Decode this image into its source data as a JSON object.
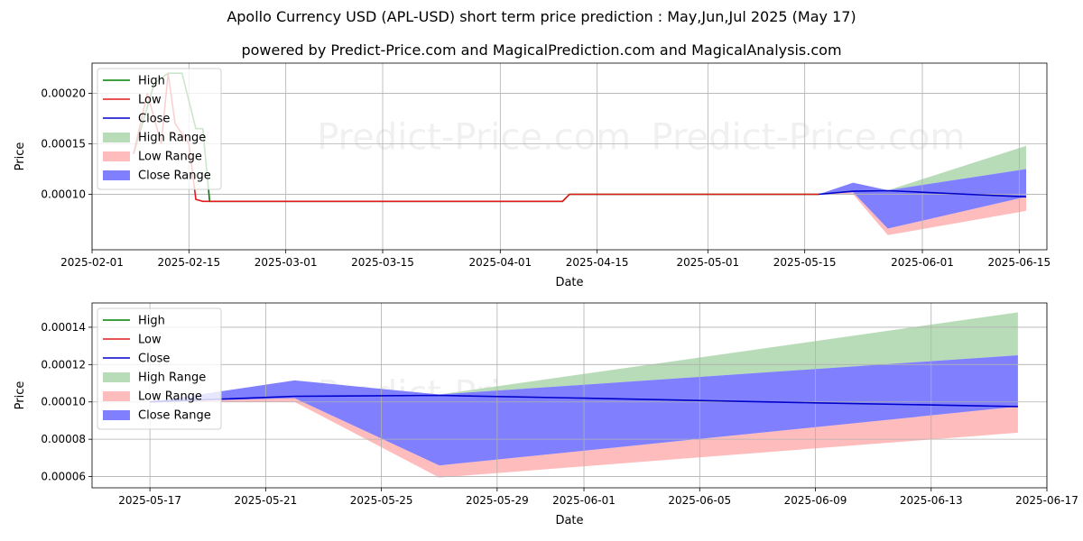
{
  "title": "Apollo Currency USD (APL-USD) short term price prediction : May,Jun,Jul 2025 (May 17)",
  "subtitle": "powered by Predict-Price.com and MagicalPrediction.com and MagicalAnalysis.com",
  "watermark": "Predict-Price.com",
  "colors": {
    "high": "#008000",
    "low": "#e31a1c",
    "close": "#0000cc",
    "high_range": "#b9dcb8",
    "low_range": "#ffbcbc",
    "close_range": "#8080ff",
    "grid": "#b0b0b0",
    "axis": "#000000"
  },
  "chart_data": [
    {
      "type": "line",
      "xlabel": "Date",
      "ylabel": "Price",
      "xlim": [
        "2025-02-01",
        "2025-06-19"
      ],
      "ylim": [
        4.5e-05,
        0.00023
      ],
      "x_ticks": [
        "2025-02-01",
        "2025-02-15",
        "2025-03-01",
        "2025-03-15",
        "2025-04-01",
        "2025-04-15",
        "2025-05-01",
        "2025-05-15",
        "2025-06-01",
        "2025-06-15"
      ],
      "y_ticks": [
        "0.00010",
        "0.00015",
        "0.00020"
      ],
      "y_tick_values": [
        0.0001,
        0.00015,
        0.0002
      ],
      "legend": {
        "position": "top-left",
        "entries": [
          "High",
          "Low",
          "Close",
          "High Range",
          "Low Range",
          "Close Range"
        ]
      },
      "series": [
        {
          "name": "High",
          "kind": "line",
          "color": "high",
          "x": [
            "2025-02-07",
            "2025-02-10",
            "2025-02-12",
            "2025-02-14",
            "2025-02-16",
            "2025-02-17",
            "2025-02-18",
            "2025-04-10",
            "2025-04-11",
            "2025-05-17"
          ],
          "y": [
            0.00014,
            0.00021,
            0.00022,
            0.00022,
            0.000165,
            0.000165,
            9.3e-05,
            9.3e-05,
            0.0001,
            0.0001
          ]
        },
        {
          "name": "Low",
          "kind": "line",
          "color": "low",
          "x": [
            "2025-02-07",
            "2025-02-09",
            "2025-02-11",
            "2025-02-12",
            "2025-02-13",
            "2025-02-15",
            "2025-02-16",
            "2025-02-17",
            "2025-04-10",
            "2025-04-11",
            "2025-05-17"
          ],
          "y": [
            0.00014,
            0.0002,
            0.00015,
            0.00022,
            0.00017,
            0.00015,
            9.5e-05,
            9.3e-05,
            9.3e-05,
            0.0001,
            0.0001
          ]
        },
        {
          "name": "Close",
          "kind": "line",
          "color": "close",
          "x": [
            "2025-05-17",
            "2025-05-22",
            "2025-05-27",
            "2025-06-01",
            "2025-06-09",
            "2025-06-16"
          ],
          "y": [
            0.0001,
            0.000103,
            0.0001035,
            0.000102,
            9.95e-05,
            9.75e-05
          ]
        },
        {
          "name": "High Range",
          "kind": "band",
          "color": "high_range",
          "x": [
            "2025-05-17",
            "2025-05-22",
            "2025-05-27",
            "2025-06-16"
          ],
          "upper": [
            0.0001,
            0.0001,
            0.000104,
            0.000148
          ],
          "lower": [
            0.0001,
            0.0001,
            0.000104,
            0.000125
          ]
        },
        {
          "name": "Low Range",
          "kind": "band",
          "color": "low_range",
          "x": [
            "2025-05-17",
            "2025-05-22",
            "2025-05-27",
            "2025-06-16"
          ],
          "upper": [
            0.0001,
            0.000102,
            6.6e-05,
            9.75e-05
          ],
          "lower": [
            0.0001,
            0.0001,
            5.95e-05,
            8.35e-05
          ]
        },
        {
          "name": "Close Range",
          "kind": "band",
          "color": "close_range",
          "x": [
            "2025-05-17",
            "2025-05-22",
            "2025-05-27",
            "2025-06-16"
          ],
          "upper": [
            0.0001,
            0.0001115,
            0.000104,
            0.000125
          ],
          "lower": [
            0.0001,
            0.000102,
            6.6e-05,
            9.75e-05
          ]
        }
      ]
    },
    {
      "type": "line",
      "xlabel": "Date",
      "ylabel": "Price",
      "xlim": [
        "2025-05-15",
        "2025-06-17"
      ],
      "ylim": [
        5.4e-05,
        0.000153
      ],
      "x_ticks": [
        "2025-05-17",
        "2025-05-21",
        "2025-05-25",
        "2025-05-29",
        "2025-06-01",
        "2025-06-05",
        "2025-06-09",
        "2025-06-13",
        "2025-06-17"
      ],
      "y_ticks": [
        "0.00006",
        "0.00008",
        "0.00010",
        "0.00012",
        "0.00014"
      ],
      "y_tick_values": [
        6e-05,
        8e-05,
        0.0001,
        0.00012,
        0.00014
      ],
      "legend": {
        "position": "top-left",
        "entries": [
          "High",
          "Low",
          "Close",
          "High Range",
          "Low Range",
          "Close Range"
        ]
      },
      "series": [
        {
          "name": "Close",
          "kind": "line",
          "color": "close",
          "x": [
            "2025-05-17",
            "2025-05-22",
            "2025-05-27",
            "2025-06-01",
            "2025-06-09",
            "2025-06-16"
          ],
          "y": [
            0.0001,
            0.000103,
            0.0001035,
            0.000102,
            9.95e-05,
            9.75e-05
          ]
        },
        {
          "name": "High Range",
          "kind": "band",
          "color": "high_range",
          "x": [
            "2025-05-17",
            "2025-05-22",
            "2025-05-27",
            "2025-06-16"
          ],
          "upper": [
            0.0001,
            0.0001,
            0.000104,
            0.000148
          ],
          "lower": [
            0.0001,
            0.0001,
            0.000104,
            0.000125
          ]
        },
        {
          "name": "Low Range",
          "kind": "band",
          "color": "low_range",
          "x": [
            "2025-05-17",
            "2025-05-22",
            "2025-05-27",
            "2025-06-16"
          ],
          "upper": [
            0.0001,
            0.000102,
            6.6e-05,
            9.75e-05
          ],
          "lower": [
            0.0001,
            0.0001,
            5.95e-05,
            8.35e-05
          ]
        },
        {
          "name": "Close Range",
          "kind": "band",
          "color": "close_range",
          "x": [
            "2025-05-17",
            "2025-05-22",
            "2025-05-27",
            "2025-06-16"
          ],
          "upper": [
            0.0001,
            0.0001115,
            0.000104,
            0.000125
          ],
          "lower": [
            0.0001,
            0.000102,
            6.6e-05,
            9.75e-05
          ]
        }
      ]
    }
  ]
}
